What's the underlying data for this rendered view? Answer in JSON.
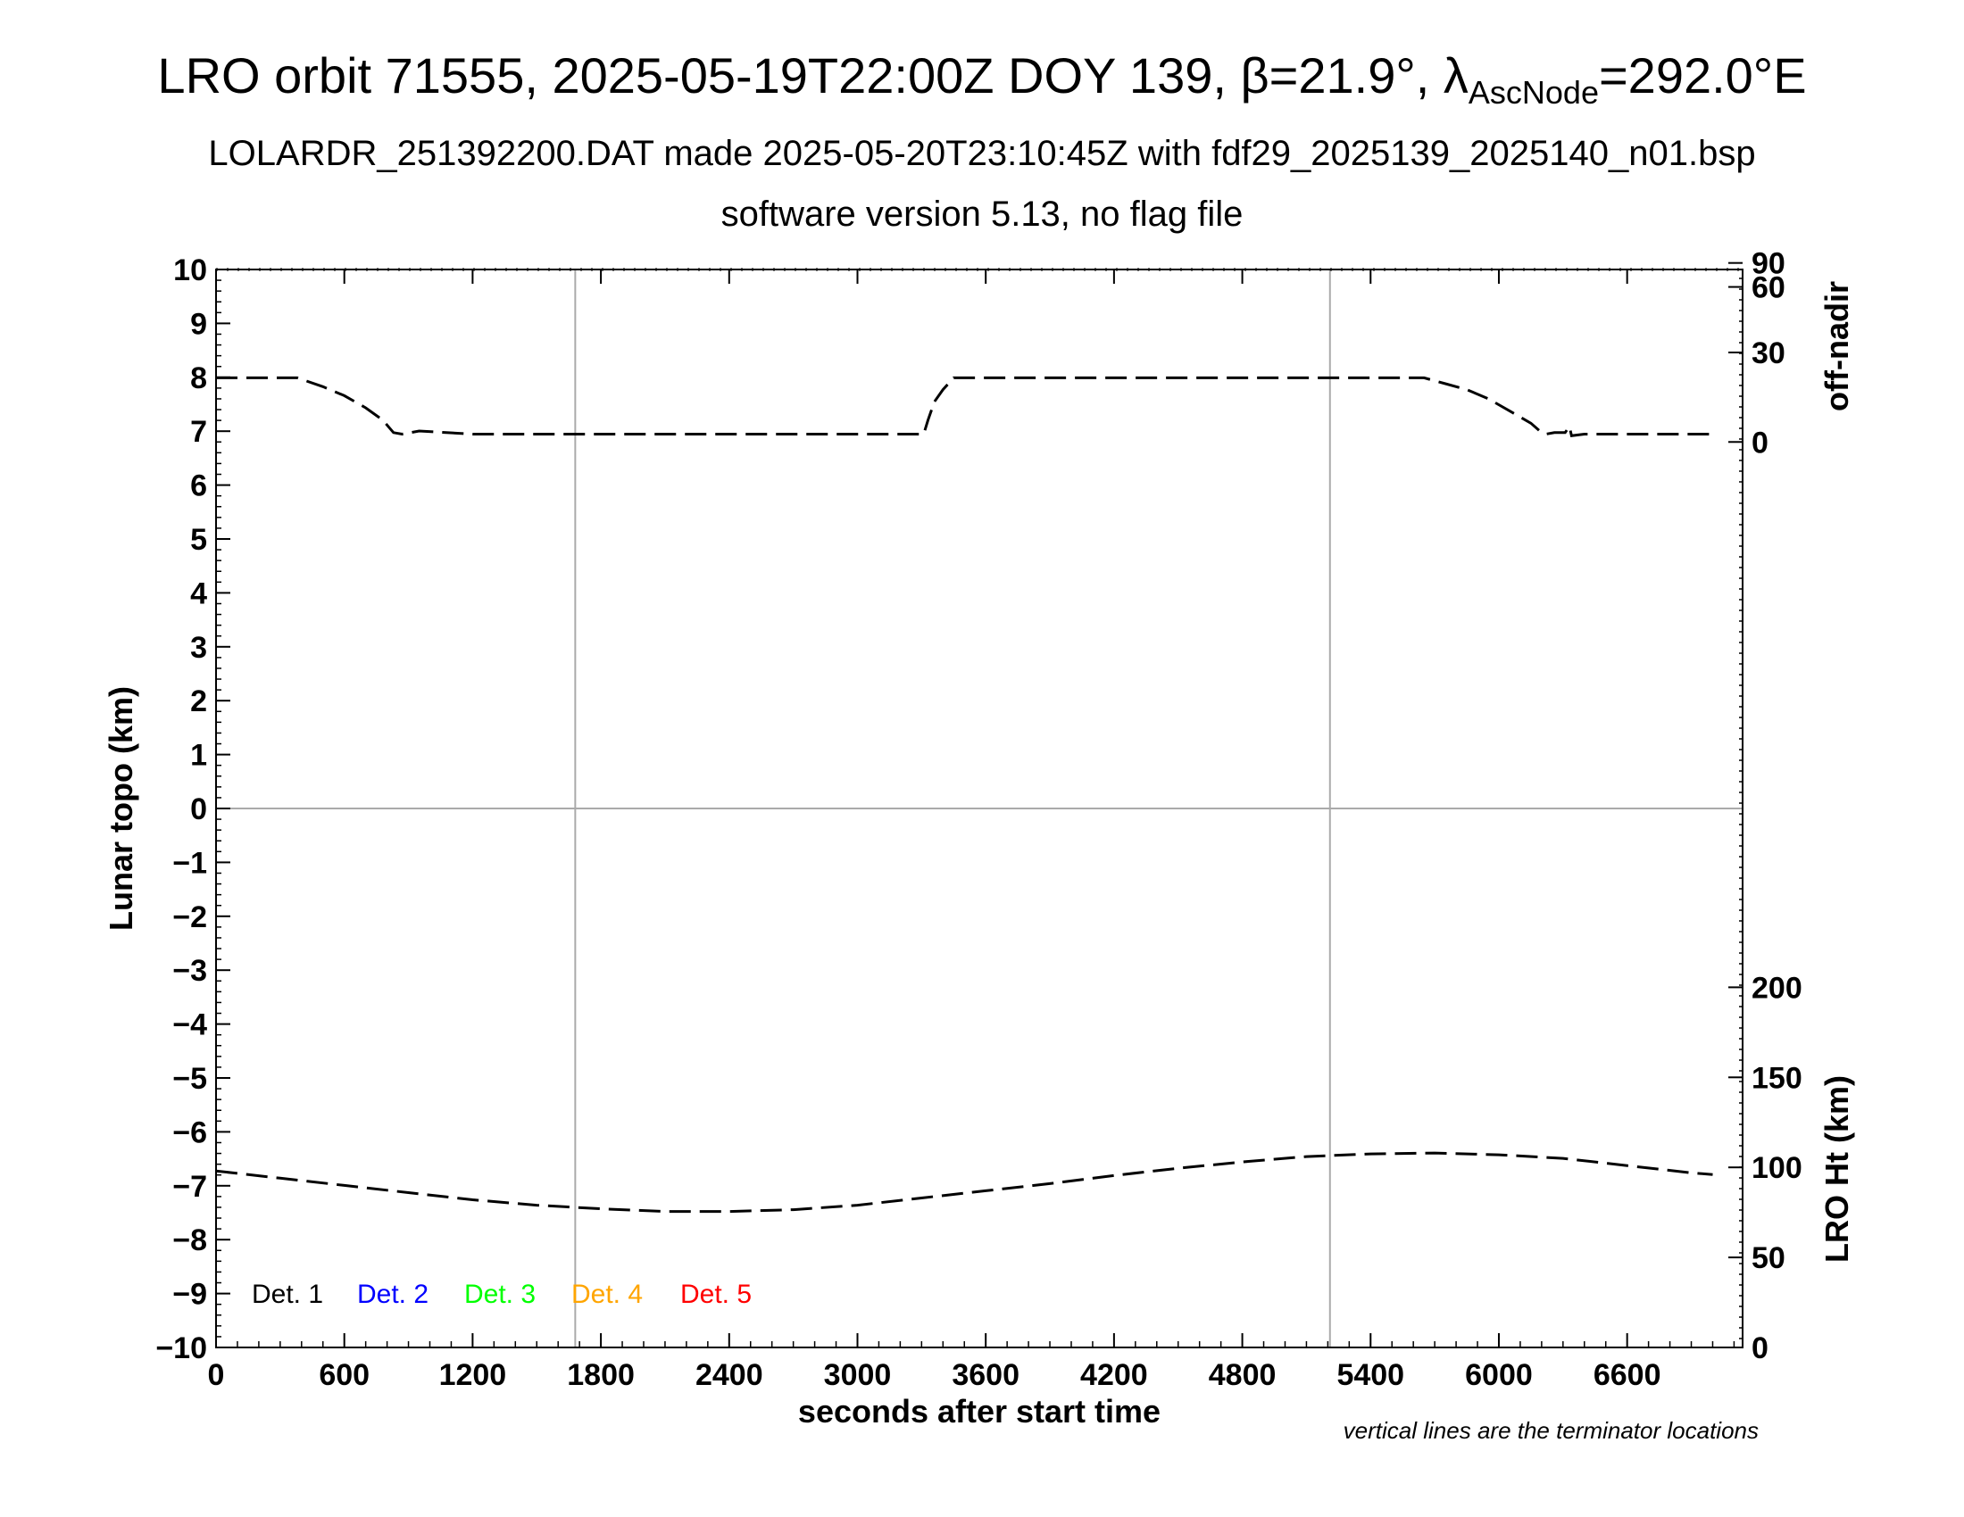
{
  "title": {
    "prefix": "LRO orbit 71555, 2025-05-19T22:00Z DOY 139, β=21.9°, λ",
    "sub": "AscNode",
    "suffix": "=292.0°E",
    "line2": "LOLARDR_251392200.DAT made 2025-05-20T23:10:45Z with fdf29_2025139_2025140_n01.bsp",
    "line3": "software version 5.13, no flag file"
  },
  "note": "vertical lines are the terminator locations",
  "colors": {
    "det1": "#000000",
    "det2": "#0000ff",
    "det3": "#00ff00",
    "det4": "#ffa500",
    "det5": "#ff0000",
    "grid": "#aaaaaa"
  },
  "chart_data": {
    "type": "line",
    "xlabel": "seconds after start time",
    "ylabel": "Lunar topo (km)",
    "xlim": [
      0,
      7140
    ],
    "ylim": [
      -10,
      10
    ],
    "x_ticks": [
      0,
      600,
      1200,
      1800,
      2400,
      3000,
      3600,
      4200,
      4800,
      5400,
      6000,
      6600
    ],
    "y_ticks": [
      10,
      9,
      8,
      7,
      6,
      5,
      4,
      3,
      2,
      1,
      0,
      -1,
      -2,
      -3,
      -4,
      -5,
      -6,
      -7,
      -8,
      -9,
      -10
    ],
    "y_tick_labels": [
      "10",
      "9",
      "8",
      "7",
      "6",
      "5",
      "4",
      "3",
      "2",
      "1",
      "0",
      "−1",
      "−2",
      "−3",
      "−4",
      "−5",
      "−6",
      "−7",
      "−8",
      "−9",
      "−10"
    ],
    "terminator_lines_x": [
      1680,
      5210
    ],
    "grid_y": [
      0
    ],
    "legend": [
      "Det. 1",
      "Det. 2",
      "Det. 3",
      "Det. 4",
      "Det. 5"
    ],
    "legend_placement": "bottom-left",
    "right_axis_offnadir": {
      "label": "off-nadir",
      "ticks": [
        0,
        30,
        60,
        90
      ],
      "series": {
        "style": "dashed",
        "x": [
          0,
          380,
          500,
          600,
          700,
          780,
          830,
          870,
          950,
          1200,
          1500,
          2000,
          2400,
          2800,
          3100,
          3310,
          3330,
          3360,
          3400,
          3450,
          3500,
          4200,
          5000,
          5650,
          5750,
          5850,
          5950,
          6050,
          6150,
          6200,
          6220,
          6260,
          6310,
          6330,
          6340,
          6400,
          6700,
          7000
        ],
        "y": [
          21,
          21,
          18,
          15,
          11,
          7,
          3,
          2.5,
          3.5,
          2.5,
          2.5,
          2.5,
          2.5,
          2.5,
          2.5,
          2.5,
          7,
          13,
          17,
          21,
          21,
          21,
          21,
          21,
          19,
          17,
          14,
          10,
          6,
          3,
          2.5,
          3,
          3,
          5,
          2,
          2.5,
          2.5,
          2.5
        ]
      }
    },
    "right_axis_height": {
      "label": "LRO Ht (km)",
      "ticks": [
        0,
        50,
        100,
        150,
        200
      ],
      "series": {
        "style": "dashed",
        "x": [
          0,
          300,
          600,
          900,
          1200,
          1500,
          1800,
          2100,
          2400,
          2700,
          3000,
          3300,
          3600,
          3900,
          4200,
          4500,
          4800,
          5100,
          5400,
          5700,
          6000,
          6300,
          6600,
          6900,
          7000
        ],
        "y": [
          98,
          94,
          90,
          86,
          82,
          79,
          77,
          75.5,
          75.5,
          76.5,
          79,
          83,
          87,
          91,
          95.5,
          99.5,
          103,
          106,
          107.5,
          108,
          107,
          105,
          101,
          97,
          96
        ]
      }
    }
  }
}
